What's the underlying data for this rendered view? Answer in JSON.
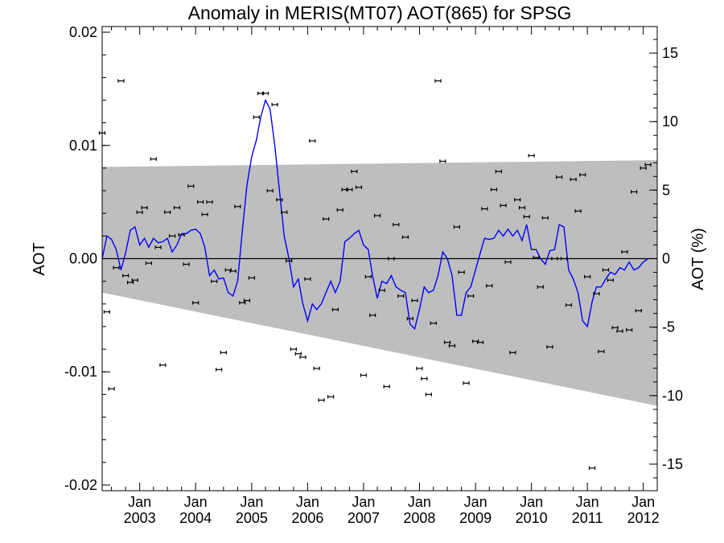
{
  "chart_data": {
    "type": "scatter",
    "title": "Anomaly in MERIS(MT07) AOT(865) for SPSG",
    "ylabel": "AOT",
    "ylabel_right": "AOT (%)",
    "ylim": [
      -0.0205,
      0.0205
    ],
    "ylim_right": [
      -16.94,
      16.94
    ],
    "xlim": [
      "2002-05-01",
      "2012-04-01"
    ],
    "y_ticks": [
      "0.02",
      "0.01",
      "0.00",
      "-0.01",
      "-0.02"
    ],
    "y_tick_values": [
      0.02,
      0.01,
      0.0,
      -0.01,
      -0.02
    ],
    "y_right_ticks": [
      "15",
      "10",
      "5",
      "0",
      "-5",
      "-10",
      "-15"
    ],
    "y_right_tick_values": [
      15,
      10,
      5,
      0,
      -5,
      -10,
      -15
    ],
    "x_ticks": [
      {
        "month": "Jan",
        "year": "2003",
        "date": "2003-01-01"
      },
      {
        "month": "Jan",
        "year": "2004",
        "date": "2004-01-01"
      },
      {
        "month": "Jan",
        "year": "2005",
        "date": "2005-01-01"
      },
      {
        "month": "Jan",
        "year": "2006",
        "date": "2006-01-01"
      },
      {
        "month": "Jan",
        "year": "2007",
        "date": "2007-01-01"
      },
      {
        "month": "Jan",
        "year": "2008",
        "date": "2008-01-01"
      },
      {
        "month": "Jan",
        "year": "2009",
        "date": "2009-01-01"
      },
      {
        "month": "Jan",
        "year": "2010",
        "date": "2010-01-01"
      },
      {
        "month": "Jan",
        "year": "2011",
        "date": "2011-01-01"
      },
      {
        "month": "Jan",
        "year": "2012",
        "date": "2012-01-01"
      }
    ],
    "band": {
      "upper": [
        [
          "2002-05-01",
          0.0081
        ],
        [
          "2012-04-01",
          0.0087
        ]
      ],
      "lower": [
        [
          "2002-05-01",
          -0.003
        ],
        [
          "2012-04-01",
          -0.013
        ]
      ],
      "color": "#bebebe"
    },
    "points_color": "#000000",
    "line_color": "#0000ff",
    "zero_line": true,
    "series": [
      {
        "values": [
          [
            "2002-05-01",
            0.0111
          ],
          [
            "2002-06-01",
            -0.0047
          ],
          [
            "2002-07-01",
            -0.0115
          ],
          [
            "2002-08-01",
            -0.0008
          ],
          [
            "2002-09-01",
            0.0157
          ],
          [
            "2002-10-01",
            -0.0015
          ],
          [
            "2002-11-01",
            -0.0021
          ],
          [
            "2002-12-01",
            -0.0019
          ],
          [
            "2003-01-01",
            0.0041
          ],
          [
            "2003-02-01",
            0.0045
          ],
          [
            "2003-03-01",
            -0.0004
          ],
          [
            "2003-04-01",
            0.0088
          ],
          [
            "2003-05-01",
            0.001
          ],
          [
            "2003-06-01",
            -0.0094
          ],
          [
            "2003-07-01",
            0.0041
          ],
          [
            "2003-08-01",
            0.002
          ],
          [
            "2003-09-01",
            0.0045
          ],
          [
            "2003-10-01",
            0.0021
          ],
          [
            "2003-11-01",
            -0.0005
          ],
          [
            "2003-12-01",
            0.0064
          ],
          [
            "2004-01-01",
            -0.0039
          ],
          [
            "2004-02-01",
            0.005
          ],
          [
            "2004-03-01",
            0.0039
          ],
          [
            "2004-04-01",
            0.005
          ],
          [
            "2004-05-01",
            -0.002
          ],
          [
            "2004-06-01",
            -0.0098
          ],
          [
            "2004-07-01",
            -0.0083
          ],
          [
            "2004-08-01",
            -0.001
          ],
          [
            "2004-09-01",
            -0.0011
          ],
          [
            "2004-10-01",
            0.0046
          ],
          [
            "2004-11-01",
            -0.0039
          ],
          [
            "2004-12-01",
            -0.0037
          ],
          [
            "2005-01-01",
            -0.0017
          ],
          [
            "2005-02-01",
            0.0125
          ],
          [
            "2005-03-01",
            0.0146
          ],
          [
            "2005-04-01",
            0.0146
          ],
          [
            "2005-05-01",
            0.006
          ],
          [
            "2005-06-01",
            0.0136
          ],
          [
            "2005-07-01",
            0.0052
          ],
          [
            "2005-08-01",
            0.0041
          ],
          [
            "2005-09-01",
            -0.0002
          ],
          [
            "2005-10-01",
            -0.008
          ],
          [
            "2005-11-01",
            -0.0084
          ],
          [
            "2005-12-01",
            -0.0087
          ],
          [
            "2006-01-01",
            -0.0018
          ],
          [
            "2006-02-01",
            0.0104
          ],
          [
            "2006-03-01",
            -0.0097
          ],
          [
            "2006-04-01",
            -0.0125
          ],
          [
            "2006-05-01",
            0.0035
          ],
          [
            "2006-06-01",
            -0.0122
          ],
          [
            "2006-07-01",
            -0.0045
          ],
          [
            "2006-08-01",
            0.0043
          ],
          [
            "2006-09-01",
            0.0061
          ],
          [
            "2006-10-01",
            0.0061
          ],
          [
            "2006-11-01",
            0.0077
          ],
          [
            "2006-12-01",
            0.0063
          ],
          [
            "2007-01-01",
            -0.0103
          ],
          [
            "2007-02-01",
            -0.0016
          ],
          [
            "2007-03-01",
            -0.005
          ],
          [
            "2007-04-01",
            0.0038
          ],
          [
            "2007-05-01",
            -0.0028
          ],
          [
            "2007-06-01",
            -0.0113
          ],
          [
            "2007-07-01",
            0.0
          ],
          [
            "2007-08-01",
            0.003
          ],
          [
            "2007-09-01",
            -0.0033
          ],
          [
            "2007-10-01",
            0.0019
          ],
          [
            "2007-11-01",
            -0.0053
          ],
          [
            "2007-12-01",
            -0.0037
          ],
          [
            "2008-01-01",
            -0.0097
          ],
          [
            "2008-02-01",
            -0.0106
          ],
          [
            "2008-03-01",
            -0.012
          ],
          [
            "2008-04-01",
            -0.0057
          ],
          [
            "2008-05-01",
            0.0157
          ],
          [
            "2008-06-01",
            0.0086
          ],
          [
            "2008-07-01",
            -0.0074
          ],
          [
            "2008-08-01",
            -0.0077
          ],
          [
            "2008-09-01",
            0.0028
          ],
          [
            "2008-10-01",
            -0.0012
          ],
          [
            "2008-11-01",
            -0.011
          ],
          [
            "2008-12-01",
            -0.0033
          ],
          [
            "2009-01-01",
            -0.0073
          ],
          [
            "2009-02-01",
            -0.0074
          ],
          [
            "2009-03-01",
            0.0044
          ],
          [
            "2009-04-01",
            -0.0024
          ],
          [
            "2009-05-01",
            0.0061
          ],
          [
            "2009-06-01",
            0.0077
          ],
          [
            "2009-07-01",
            0.0047
          ],
          [
            "2009-08-01",
            -0.0003
          ],
          [
            "2009-09-01",
            -0.0083
          ],
          [
            "2009-10-01",
            0.0052
          ],
          [
            "2009-11-01",
            0.0045
          ],
          [
            "2009-12-01",
            0.0037
          ],
          [
            "2010-01-01",
            0.0091
          ],
          [
            "2010-02-01",
            0.0001
          ],
          [
            "2010-03-01",
            -0.0025
          ],
          [
            "2010-04-01",
            0.0036
          ],
          [
            "2010-05-01",
            -0.0078
          ],
          [
            "2010-06-01",
            0.0
          ],
          [
            "2010-07-01",
            0.0072
          ],
          [
            "2010-08-01",
            0.0
          ],
          [
            "2010-09-01",
            -0.0041
          ],
          [
            "2010-10-01",
            0.007
          ],
          [
            "2010-11-01",
            0.0042
          ],
          [
            "2010-12-01",
            0.0074
          ],
          [
            "2011-01-01",
            -0.0016
          ],
          [
            "2011-02-01",
            -0.0185
          ],
          [
            "2011-03-01",
            -0.0031
          ],
          [
            "2011-04-01",
            -0.0082
          ],
          [
            "2011-05-01",
            -0.001
          ],
          [
            "2011-06-01",
            -0.0019
          ],
          [
            "2011-07-01",
            -0.0061
          ],
          [
            "2011-08-01",
            -0.0064
          ],
          [
            "2011-09-01",
            0.0006
          ],
          [
            "2011-10-01",
            -0.0063
          ],
          [
            "2011-11-01",
            0.0059
          ],
          [
            "2011-12-01",
            -0.0046
          ],
          [
            "2012-01-01",
            0.008
          ],
          [
            "2012-02-01",
            0.0083
          ]
        ]
      },
      {
        "type": "line",
        "values": [
          [
            "2002-05-01",
            0.0
          ],
          [
            "2002-06-01",
            0.002
          ],
          [
            "2002-07-01",
            0.0017
          ],
          [
            "2002-08-01",
            0.0008
          ],
          [
            "2002-09-01",
            -0.001
          ],
          [
            "2002-10-01",
            0.0005
          ],
          [
            "2002-11-01",
            0.0025
          ],
          [
            "2002-12-01",
            0.0028
          ],
          [
            "2003-01-01",
            0.0012
          ],
          [
            "2003-02-01",
            0.0018
          ],
          [
            "2003-03-01",
            0.001
          ],
          [
            "2003-04-01",
            0.0018
          ],
          [
            "2003-05-01",
            0.0014
          ],
          [
            "2003-06-01",
            0.0015
          ],
          [
            "2003-07-01",
            0.0018
          ],
          [
            "2003-08-01",
            0.0006
          ],
          [
            "2003-09-01",
            0.0012
          ],
          [
            "2003-10-01",
            0.0022
          ],
          [
            "2003-11-01",
            0.0022
          ],
          [
            "2003-12-01",
            0.0025
          ],
          [
            "2004-01-01",
            0.0026
          ],
          [
            "2004-02-01",
            0.0022
          ],
          [
            "2004-03-01",
            0.001
          ],
          [
            "2004-04-01",
            -0.0015
          ],
          [
            "2004-05-01",
            -0.001
          ],
          [
            "2004-06-01",
            -0.0018
          ],
          [
            "2004-07-01",
            -0.0017
          ],
          [
            "2004-08-01",
            -0.003
          ],
          [
            "2004-09-01",
            -0.0033
          ],
          [
            "2004-10-01",
            -0.002
          ],
          [
            "2004-11-01",
            0.0025
          ],
          [
            "2004-12-01",
            0.0065
          ],
          [
            "2005-01-01",
            0.009
          ],
          [
            "2005-02-01",
            0.0105
          ],
          [
            "2005-03-01",
            0.0125
          ],
          [
            "2005-04-01",
            0.014
          ],
          [
            "2005-05-01",
            0.0132
          ],
          [
            "2005-06-01",
            0.01
          ],
          [
            "2005-07-01",
            0.006
          ],
          [
            "2005-08-01",
            0.002
          ],
          [
            "2005-09-01",
            0.0
          ],
          [
            "2005-10-01",
            -0.0025
          ],
          [
            "2005-11-01",
            -0.0018
          ],
          [
            "2005-12-01",
            -0.004
          ],
          [
            "2006-01-01",
            -0.0055
          ],
          [
            "2006-02-01",
            -0.004
          ],
          [
            "2006-03-01",
            -0.0045
          ],
          [
            "2006-04-01",
            -0.004
          ],
          [
            "2006-05-01",
            -0.003
          ],
          [
            "2006-06-01",
            -0.002
          ],
          [
            "2006-07-01",
            -0.003
          ],
          [
            "2006-08-01",
            -0.002
          ],
          [
            "2006-09-01",
            0.0015
          ],
          [
            "2006-10-01",
            0.0018
          ],
          [
            "2006-11-01",
            0.0022
          ],
          [
            "2006-12-01",
            0.0025
          ],
          [
            "2007-01-01",
            0.0012
          ],
          [
            "2007-02-01",
            0.0008
          ],
          [
            "2007-03-01",
            -0.0015
          ],
          [
            "2007-04-01",
            -0.0035
          ],
          [
            "2007-05-01",
            -0.002
          ],
          [
            "2007-06-01",
            -0.0022
          ],
          [
            "2007-07-01",
            -0.0015
          ],
          [
            "2007-08-01",
            -0.0025
          ],
          [
            "2007-09-01",
            -0.0028
          ],
          [
            "2007-10-01",
            -0.003
          ],
          [
            "2007-11-01",
            -0.0058
          ],
          [
            "2007-12-01",
            -0.0062
          ],
          [
            "2008-01-01",
            -0.0045
          ],
          [
            "2008-02-01",
            -0.0025
          ],
          [
            "2008-03-01",
            -0.003
          ],
          [
            "2008-04-01",
            -0.0028
          ],
          [
            "2008-05-01",
            -0.0015
          ],
          [
            "2008-06-01",
            0.0006
          ],
          [
            "2008-07-01",
            0.0
          ],
          [
            "2008-08-01",
            -0.0015
          ],
          [
            "2008-09-01",
            -0.005
          ],
          [
            "2008-10-01",
            -0.005
          ],
          [
            "2008-11-01",
            -0.003
          ],
          [
            "2008-12-01",
            -0.0025
          ],
          [
            "2009-01-01",
            -0.001
          ],
          [
            "2009-02-01",
            0.0005
          ],
          [
            "2009-03-01",
            0.0018
          ],
          [
            "2009-04-01",
            0.0017
          ],
          [
            "2009-05-01",
            0.0018
          ],
          [
            "2009-06-01",
            0.0025
          ],
          [
            "2009-07-01",
            0.002
          ],
          [
            "2009-08-01",
            0.0026
          ],
          [
            "2009-09-01",
            0.002
          ],
          [
            "2009-10-01",
            0.0025
          ],
          [
            "2009-11-01",
            0.0016
          ],
          [
            "2009-12-01",
            0.003
          ],
          [
            "2010-01-01",
            0.0008
          ],
          [
            "2010-02-01",
            0.0008
          ],
          [
            "2010-03-01",
            0.0
          ],
          [
            "2010-04-01",
            -0.0005
          ],
          [
            "2010-05-01",
            0.0007
          ],
          [
            "2010-06-01",
            0.0008
          ],
          [
            "2010-07-01",
            0.003
          ],
          [
            "2010-08-01",
            0.0028
          ],
          [
            "2010-09-01",
            -0.001
          ],
          [
            "2010-10-01",
            -0.0018
          ],
          [
            "2010-11-01",
            -0.003
          ],
          [
            "2010-12-01",
            -0.0055
          ],
          [
            "2011-01-01",
            -0.006
          ],
          [
            "2011-02-01",
            -0.0038
          ],
          [
            "2011-03-01",
            -0.0025
          ],
          [
            "2011-04-01",
            -0.0025
          ],
          [
            "2011-05-01",
            -0.0018
          ],
          [
            "2011-06-01",
            -0.0012
          ],
          [
            "2011-07-01",
            -0.0014
          ],
          [
            "2011-08-01",
            -0.0008
          ],
          [
            "2011-09-01",
            -0.001
          ],
          [
            "2011-10-01",
            -0.0003
          ],
          [
            "2011-11-01",
            -0.001
          ],
          [
            "2011-12-01",
            -0.0008
          ],
          [
            "2012-01-01",
            -0.0003
          ],
          [
            "2012-02-01",
            0.0
          ]
        ]
      }
    ]
  }
}
